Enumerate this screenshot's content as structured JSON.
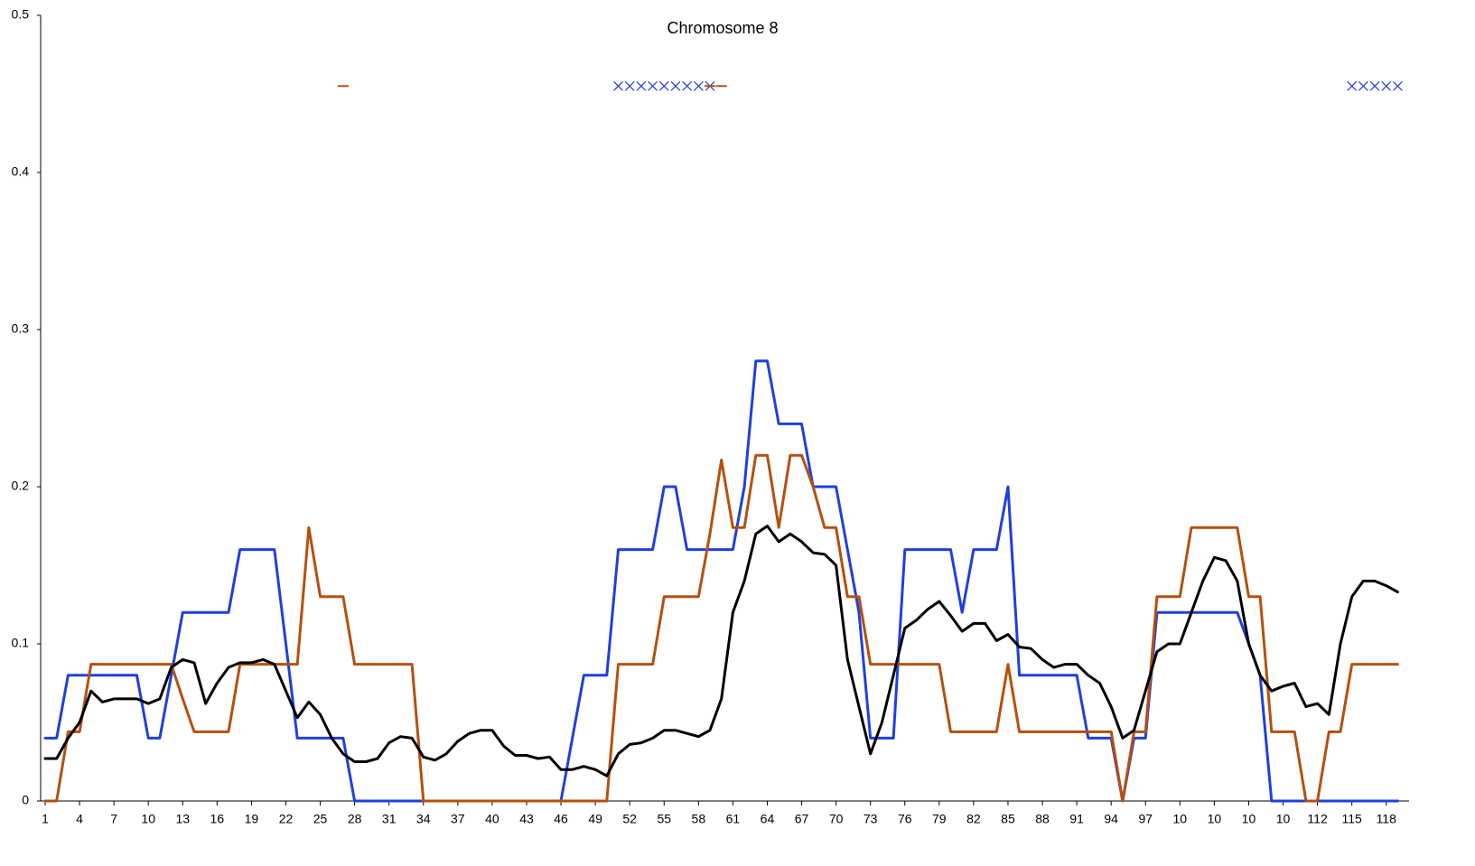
{
  "chart_data": {
    "type": "line",
    "title": "Chromosome 8",
    "categories": [
      "1",
      null,
      null,
      "4",
      null,
      null,
      "7",
      null,
      null,
      "10",
      null,
      null,
      "13",
      null,
      null,
      "16",
      null,
      null,
      "19",
      null,
      null,
      "22",
      null,
      null,
      "25",
      null,
      null,
      "28",
      null,
      null,
      "31",
      null,
      null,
      "34",
      null,
      null,
      "37",
      null,
      null,
      "40",
      null,
      null,
      "43",
      null,
      null,
      "46",
      null,
      null,
      "49",
      null,
      null,
      "52",
      null,
      null,
      "55",
      null,
      null,
      "58",
      null,
      null,
      "61",
      null,
      null,
      "64",
      null,
      null,
      "67",
      null,
      null,
      "70",
      null,
      null,
      "73",
      null,
      null,
      "76",
      null,
      null,
      "79",
      null,
      null,
      "82",
      null,
      null,
      "85",
      null,
      null,
      "88",
      null,
      null,
      "91",
      null,
      null,
      "94",
      null,
      null,
      "97",
      null,
      null,
      "10",
      null,
      null,
      "10",
      null,
      null,
      "10",
      null,
      null,
      "10",
      null,
      null,
      "112",
      null,
      null,
      "115",
      null,
      null,
      "118",
      null
    ],
    "ylim": [
      0,
      0.5
    ],
    "yticks": [
      0,
      0.1,
      0.2,
      0.3,
      0.4,
      0.5
    ],
    "grid": false,
    "series": [
      {
        "color": "#1f3fe0",
        "values": [
          0.04,
          0.04,
          0.08,
          0.08,
          0.08,
          0.08,
          0.08,
          0.08,
          0.08,
          0.04,
          0.04,
          0.08,
          0.12,
          0.12,
          0.12,
          0.12,
          0.12,
          0.16,
          0.16,
          0.16,
          0.16,
          0.1,
          0.04,
          0.04,
          0.04,
          0.04,
          0.04,
          0,
          0,
          0,
          0,
          0,
          0,
          0,
          0,
          0,
          0,
          0,
          0,
          0,
          0,
          0,
          0,
          0,
          0,
          0,
          0.04,
          0.08,
          0.08,
          0.08,
          0.16,
          0.16,
          0.16,
          0.16,
          0.2,
          0.2,
          0.16,
          0.16,
          0.16,
          0.16,
          0.16,
          0.2,
          0.28,
          0.28,
          0.24,
          0.24,
          0.24,
          0.2,
          0.2,
          0.2,
          0.16,
          0.12,
          0.04,
          0.04,
          0.04,
          0.16,
          0.16,
          0.16,
          0.16,
          0.16,
          0.12,
          0.16,
          0.16,
          0.16,
          0.2,
          0.08,
          0.08,
          0.08,
          0.08,
          0.08,
          0.08,
          0.04,
          0.04,
          0.04,
          0,
          0.04,
          0.04,
          0.12,
          0.12,
          0.12,
          0.12,
          0.12,
          0.12,
          0.12,
          0.12,
          0.1,
          0.08,
          0,
          0,
          0,
          0,
          0,
          0,
          0,
          0,
          0,
          0,
          0,
          0
        ]
      },
      {
        "color": "#b5500f",
        "values": [
          0,
          0,
          0.044,
          0.044,
          0.087,
          0.087,
          0.087,
          0.087,
          0.087,
          0.087,
          0.087,
          0.087,
          0.065,
          0.044,
          0.044,
          0.044,
          0.044,
          0.087,
          0.087,
          0.087,
          0.087,
          0.087,
          0.087,
          0.174,
          0.13,
          0.13,
          0.13,
          0.087,
          0.087,
          0.087,
          0.087,
          0.087,
          0.087,
          0,
          0,
          0,
          0,
          0,
          0,
          0,
          0,
          0,
          0,
          0,
          0,
          0,
          0,
          0,
          0,
          0,
          0.087,
          0.087,
          0.087,
          0.087,
          0.13,
          0.13,
          0.13,
          0.13,
          0.17,
          0.217,
          0.174,
          0.174,
          0.22,
          0.22,
          0.174,
          0.22,
          0.22,
          0.2,
          0.174,
          0.174,
          0.13,
          0.13,
          0.087,
          0.087,
          0.087,
          0.087,
          0.087,
          0.087,
          0.087,
          0.044,
          0.044,
          0.044,
          0.044,
          0.044,
          0.087,
          0.044,
          0.044,
          0.044,
          0.044,
          0.044,
          0.044,
          0.044,
          0.044,
          0.044,
          0,
          0.044,
          0.044,
          0.13,
          0.13,
          0.13,
          0.174,
          0.174,
          0.174,
          0.174,
          0.174,
          0.13,
          0.13,
          0.044,
          0.044,
          0.044,
          0,
          0,
          0.044,
          0.044,
          0.087,
          0.087,
          0.087,
          0.087,
          0.087
        ]
      },
      {
        "color": "#000000",
        "values": [
          0.027,
          0.027,
          0.04,
          0.05,
          0.07,
          0.063,
          0.065,
          0.065,
          0.065,
          0.062,
          0.065,
          0.085,
          0.09,
          0.088,
          0.062,
          0.075,
          0.085,
          0.088,
          0.088,
          0.09,
          0.087,
          0.07,
          0.053,
          0.063,
          0.055,
          0.04,
          0.03,
          0.025,
          0.025,
          0.027,
          0.037,
          0.041,
          0.04,
          0.028,
          0.026,
          0.03,
          0.038,
          0.043,
          0.045,
          0.045,
          0.035,
          0.029,
          0.029,
          0.027,
          0.028,
          0.02,
          0.02,
          0.022,
          0.02,
          0.016,
          0.03,
          0.036,
          0.037,
          0.04,
          0.045,
          0.045,
          0.043,
          0.041,
          0.045,
          0.065,
          0.12,
          0.14,
          0.17,
          0.175,
          0.165,
          0.17,
          0.165,
          0.158,
          0.157,
          0.15,
          0.09,
          0.06,
          0.03,
          0.05,
          0.08,
          0.11,
          0.115,
          0.122,
          0.127,
          0.118,
          0.108,
          0.113,
          0.113,
          0.102,
          0.106,
          0.098,
          0.097,
          0.09,
          0.085,
          0.087,
          0.087,
          0.08,
          0.075,
          0.06,
          0.04,
          0.045,
          0.07,
          0.095,
          0.1,
          0.1,
          0.12,
          0.14,
          0.155,
          0.153,
          0.14,
          0.1,
          0.08,
          0.07,
          0.073,
          0.075,
          0.06,
          0.062,
          0.055,
          0.1,
          0.13,
          0.14,
          0.14,
          0.137,
          0.133
        ]
      },
      {
        "color": "#1f3fe0",
        "marker": "x",
        "line": false,
        "values": [
          null,
          null,
          null,
          null,
          null,
          null,
          null,
          null,
          null,
          null,
          null,
          null,
          null,
          null,
          null,
          null,
          null,
          null,
          null,
          null,
          null,
          null,
          null,
          null,
          null,
          null,
          null,
          null,
          null,
          null,
          null,
          null,
          null,
          null,
          null,
          null,
          null,
          null,
          null,
          null,
          null,
          null,
          null,
          null,
          null,
          null,
          null,
          null,
          null,
          null,
          0.455,
          0.455,
          0.455,
          0.455,
          0.455,
          0.455,
          0.455,
          0.455,
          0.455,
          null,
          null,
          null,
          null,
          null,
          null,
          null,
          null,
          null,
          null,
          null,
          null,
          null,
          null,
          null,
          null,
          null,
          null,
          null,
          null,
          null,
          null,
          null,
          null,
          null,
          null,
          null,
          null,
          null,
          null,
          null,
          null,
          null,
          null,
          null,
          null,
          null,
          null,
          null,
          null,
          null,
          null,
          null,
          null,
          null,
          null,
          null,
          null,
          null,
          null,
          null,
          null,
          null,
          null,
          null,
          0.455,
          0.455,
          0.455,
          0.455,
          0.455
        ]
      },
      {
        "color": "#b5500f",
        "marker": "dash",
        "line": false,
        "values": [
          null,
          null,
          null,
          null,
          null,
          null,
          null,
          null,
          null,
          null,
          null,
          null,
          null,
          null,
          null,
          null,
          null,
          null,
          null,
          null,
          null,
          null,
          null,
          null,
          null,
          null,
          0.455,
          null,
          null,
          null,
          null,
          null,
          null,
          null,
          null,
          null,
          null,
          null,
          null,
          null,
          null,
          null,
          null,
          null,
          null,
          null,
          null,
          null,
          null,
          null,
          null,
          null,
          null,
          null,
          null,
          null,
          null,
          null,
          0.455,
          0.455,
          null,
          null,
          null,
          null,
          null,
          null,
          null,
          null,
          null,
          null,
          null,
          null,
          null,
          null,
          null,
          null,
          null,
          null,
          null,
          null,
          null,
          null,
          null,
          null,
          null,
          null,
          null,
          null,
          null,
          null,
          null,
          null,
          null,
          null,
          null,
          null,
          null,
          null,
          null,
          null,
          null,
          null,
          null,
          null,
          null,
          null,
          null,
          null,
          null,
          null,
          null,
          null,
          null,
          null,
          null,
          null,
          null,
          null,
          null
        ]
      }
    ]
  }
}
